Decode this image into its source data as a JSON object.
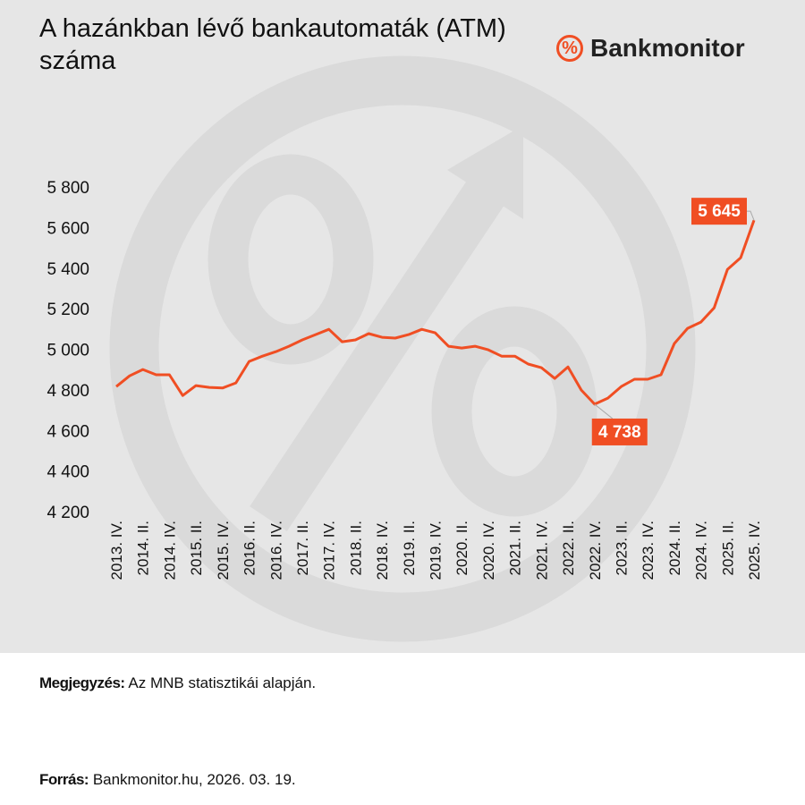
{
  "title": "A hazánkban lévő bankautomaták (ATM) száma",
  "brand": "Bankmonitor",
  "note": {
    "label": "Megjegyzés:",
    "text": "Az MNB statisztikái alapján."
  },
  "source": {
    "label": "Forrás:",
    "text": "Bankmonitor.hu, 2026. 03. 19."
  },
  "chart_data": {
    "type": "line",
    "color": "#f04e23",
    "categories": [
      "2013. IV.",
      null,
      "2014. II.",
      null,
      "2014. IV.",
      null,
      "2015. II.",
      null,
      "2015. IV.",
      null,
      "2016. II.",
      null,
      "2016. IV.",
      null,
      "2017. II.",
      null,
      "2017. IV.",
      null,
      "2018. II.",
      null,
      "2018. IV.",
      null,
      "2019. II.",
      null,
      "2019. IV.",
      null,
      "2020. II.",
      null,
      "2020. IV.",
      null,
      "2021. II.",
      null,
      "2021. IV.",
      null,
      "2022. II.",
      null,
      "2022. IV.",
      null,
      "2023. II.",
      null,
      "2023. IV.",
      null,
      "2024. II.",
      null,
      "2024. IV.",
      null,
      "2025. II.",
      null,
      "2025. IV."
    ],
    "values": [
      4825,
      4878,
      4909,
      4883,
      4883,
      4781,
      4830,
      4821,
      4818,
      4843,
      4949,
      4975,
      4997,
      5024,
      5055,
      5081,
      5107,
      5046,
      5055,
      5086,
      5068,
      5064,
      5081,
      5107,
      5090,
      5024,
      5015,
      5024,
      5006,
      4975,
      4975,
      4936,
      4918,
      4865,
      4922,
      4808,
      4738,
      4768,
      4825,
      4861,
      4861,
      4883,
      5037,
      5112,
      5143,
      5213,
      5402,
      5460,
      5645
    ],
    "value_labels": [
      null,
      null,
      null,
      null,
      null,
      null,
      null,
      null,
      null,
      null,
      null,
      null,
      null,
      null,
      null,
      null,
      null,
      null,
      null,
      null,
      null,
      null,
      null,
      null,
      null,
      null,
      null,
      null,
      null,
      null,
      null,
      null,
      null,
      null,
      null,
      null,
      "4 738",
      null,
      null,
      null,
      null,
      null,
      null,
      null,
      null,
      null,
      null,
      null,
      "5 645"
    ],
    "ylim": [
      4200,
      5800
    ],
    "yticks": [
      {
        "value": 4200,
        "label": "4 200"
      },
      {
        "value": 4400,
        "label": "4 400"
      },
      {
        "value": 4600,
        "label": "4 600"
      },
      {
        "value": 4800,
        "label": "4 800"
      },
      {
        "value": 5000,
        "label": "5 000"
      },
      {
        "value": 5200,
        "label": "5 200"
      },
      {
        "value": 5400,
        "label": "5 400"
      },
      {
        "value": 5600,
        "label": "5 600"
      },
      {
        "value": 5800,
        "label": "5 800"
      }
    ],
    "grid": false
  }
}
